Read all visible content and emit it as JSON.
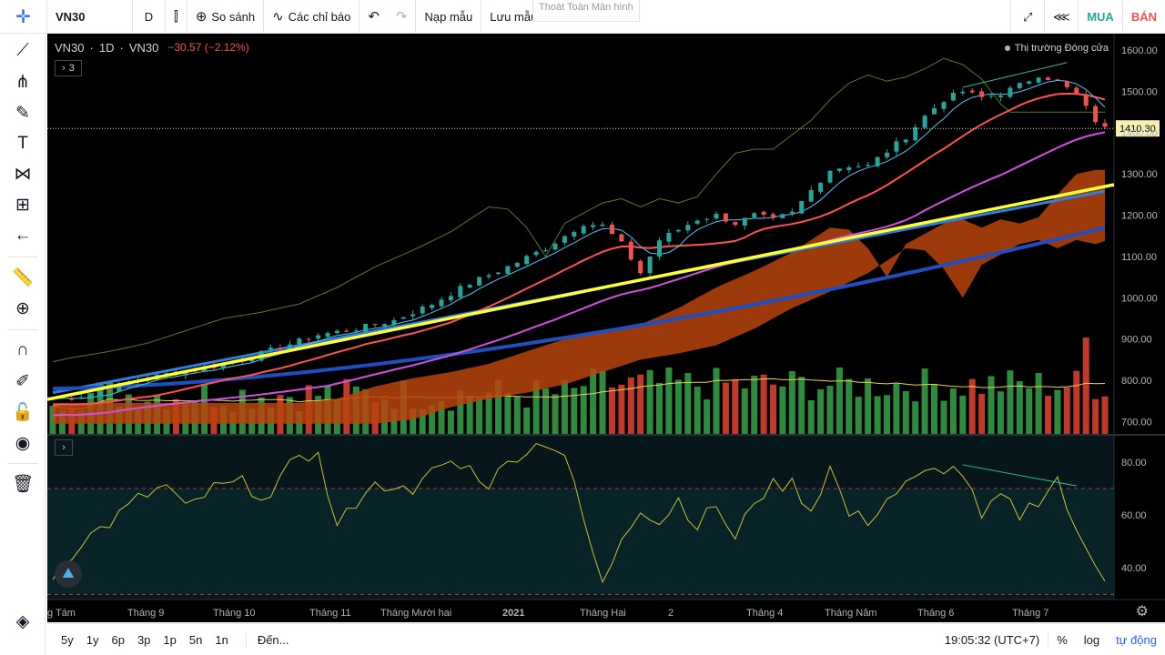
{
  "toolbar": {
    "symbol": "VN30",
    "interval": "D",
    "compare_label": "So sánh",
    "indicators_label": "Các chỉ báo",
    "templates_label": "Nạp mẫu",
    "save_label": "Lưu mẫu",
    "fullscreen_tooltip": "Thoát Toàn Màn hình",
    "buy_label": "MUA",
    "sell_label": "BÁN"
  },
  "legend": {
    "symbol": "VN30",
    "interval": "1D",
    "exchange": "VN30",
    "change": "−30.57 (−2.12%)",
    "indicator_count": "3"
  },
  "market_status": "Thị trường Đóng cửa",
  "bottom": {
    "ranges": [
      "5y",
      "1y",
      "6p",
      "3p",
      "1p",
      "5n",
      "1n"
    ],
    "goto_label": "Đến...",
    "clock": "19:05:32 (UTC+7)",
    "percent_label": "%",
    "log_label": "log",
    "auto_label": "tự động"
  },
  "chart_data": {
    "type": "candlestick",
    "symbol": "VN30",
    "interval": "1D",
    "last_price": 1410.3,
    "change": -30.57,
    "change_pct": -2.12,
    "x_tick_labels": [
      "Tháng 9",
      "Tháng 10",
      "Tháng 11",
      "Tháng Mười hai",
      "2021",
      "Tháng Hai",
      "2",
      "Tháng 4",
      "Tháng Năm",
      "Tháng 6",
      "Tháng 7"
    ],
    "x_left_partial": "g Tám",
    "y_ticks_price": [
      700,
      800,
      900,
      1000,
      1100,
      1200,
      1300,
      1400,
      1500,
      1600
    ],
    "y_ticks_rsi": [
      40,
      60,
      80
    ],
    "ylim_price": [
      670,
      1640
    ],
    "ylim_rsi": [
      28,
      90
    ],
    "last_price_label": "1410.30",
    "rsi_bands": [
      70,
      30
    ],
    "colors": {
      "up": "#26a69a",
      "down": "#ef5350",
      "vol_up": "#2e8b3e",
      "vol_down": "#c0392b",
      "ma_fast": "#4fc3f7",
      "ma_mid": "#ff5252",
      "ma_magenta": "#d050e0",
      "ma_blue_light": "#2f7fe0",
      "ma_blue_dark": "#1f4fbf",
      "trend_yellow": "#ffff33",
      "cloud": "#b8440e",
      "lagging": "#4f7d2a",
      "rsi": "#c9c03a",
      "vol_ma": "#e8d44a"
    },
    "price_path": [
      [
        0,
        755
      ],
      [
        4,
        765
      ],
      [
        8,
        795
      ],
      [
        12,
        815
      ],
      [
        16,
        830
      ],
      [
        20,
        850
      ],
      [
        24,
        880
      ],
      [
        28,
        910
      ],
      [
        32,
        925
      ],
      [
        36,
        945
      ],
      [
        40,
        985
      ],
      [
        44,
        1035
      ],
      [
        48,
        1075
      ],
      [
        52,
        1120
      ],
      [
        56,
        1180
      ],
      [
        58,
        1175
      ],
      [
        60,
        1130
      ],
      [
        62,
        1060
      ],
      [
        64,
        1140
      ],
      [
        66,
        1165
      ],
      [
        68,
        1190
      ],
      [
        70,
        1200
      ],
      [
        72,
        1180
      ],
      [
        74,
        1200
      ],
      [
        76,
        1190
      ],
      [
        78,
        1205
      ],
      [
        80,
        1260
      ],
      [
        82,
        1310
      ],
      [
        84,
        1320
      ],
      [
        86,
        1320
      ],
      [
        88,
        1355
      ],
      [
        90,
        1390
      ],
      [
        92,
        1440
      ],
      [
        94,
        1480
      ],
      [
        96,
        1500
      ],
      [
        98,
        1485
      ],
      [
        100,
        1495
      ],
      [
        102,
        1515
      ],
      [
        104,
        1540
      ],
      [
        106,
        1525
      ],
      [
        108,
        1490
      ],
      [
        110,
        1430
      ],
      [
        111,
        1410
      ]
    ],
    "rsi_path": [
      [
        0,
        37
      ],
      [
        3,
        50
      ],
      [
        6,
        57
      ],
      [
        9,
        66
      ],
      [
        12,
        71
      ],
      [
        14,
        62
      ],
      [
        17,
        70
      ],
      [
        20,
        72
      ],
      [
        23,
        66
      ],
      [
        26,
        84
      ],
      [
        28,
        82
      ],
      [
        30,
        55
      ],
      [
        33,
        70
      ],
      [
        36,
        72
      ],
      [
        38,
        66
      ],
      [
        40,
        78
      ],
      [
        43,
        80
      ],
      [
        46,
        72
      ],
      [
        49,
        83
      ],
      [
        52,
        88
      ],
      [
        54,
        83
      ],
      [
        56,
        58
      ],
      [
        58,
        33
      ],
      [
        60,
        52
      ],
      [
        62,
        63
      ],
      [
        64,
        57
      ],
      [
        66,
        66
      ],
      [
        68,
        56
      ],
      [
        70,
        64
      ],
      [
        72,
        50
      ],
      [
        74,
        66
      ],
      [
        76,
        71
      ],
      [
        78,
        72
      ],
      [
        80,
        62
      ],
      [
        82,
        78
      ],
      [
        84,
        60
      ],
      [
        86,
        58
      ],
      [
        88,
        66
      ],
      [
        90,
        71
      ],
      [
        92,
        75
      ],
      [
        94,
        78
      ],
      [
        96,
        76
      ],
      [
        98,
        58
      ],
      [
        100,
        67
      ],
      [
        102,
        60
      ],
      [
        104,
        66
      ],
      [
        106,
        74
      ],
      [
        108,
        52
      ],
      [
        110,
        42
      ],
      [
        111,
        37
      ]
    ],
    "annotations": {
      "price_trendline": [
        [
          96,
          1510
        ],
        [
          107,
          1570
        ]
      ],
      "rsi_trendline": [
        [
          96,
          79
        ],
        [
          108,
          71
        ]
      ]
    }
  }
}
